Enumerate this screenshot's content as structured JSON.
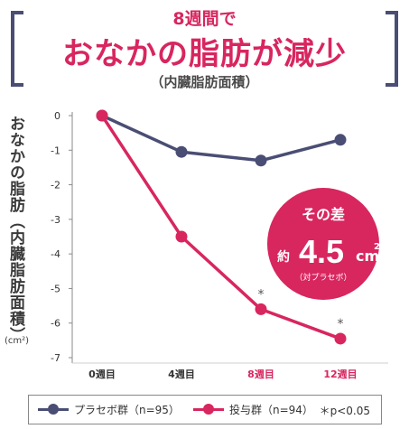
{
  "header": {
    "subtitle": "8週間で",
    "title": "おなかの脂肪が減少",
    "note": "（内臓脂肪面積）"
  },
  "axis": {
    "ylabel": "おなかの脂肪（内臓脂肪面積）",
    "yunit": "(cm²)"
  },
  "chart_data": {
    "type": "line",
    "categories": [
      "0週目",
      "4週目",
      "8週目",
      "12週目"
    ],
    "highlight_categories": [
      "8週目",
      "12週目"
    ],
    "yticks": [
      "0",
      "-1",
      "-2",
      "-3",
      "-4",
      "-5",
      "-6",
      "-7"
    ],
    "ylim": [
      -7,
      0
    ],
    "series": [
      {
        "name": "プラセボ群（n=95）",
        "color": "#4a4e74",
        "values": [
          0,
          -1.05,
          -1.3,
          -0.7
        ]
      },
      {
        "name": "投与群（n=94）",
        "color": "#d8265f",
        "values": [
          0,
          -3.5,
          -5.6,
          -6.45
        ]
      }
    ],
    "significance_marks": [
      {
        "category": "8週目",
        "label": "*"
      },
      {
        "category": "12週目",
        "label": "*"
      }
    ],
    "callout": {
      "line1": "その差",
      "prefix": "約",
      "value": "4.5",
      "unit": "cm",
      "sup": "2",
      "line3": "（対プラセボ）",
      "color": "#d8265f"
    }
  },
  "legend": {
    "placebo": "プラセボ群（n=95）",
    "treatment": "投与群（n=94）",
    "note": "＊p<0.05"
  }
}
